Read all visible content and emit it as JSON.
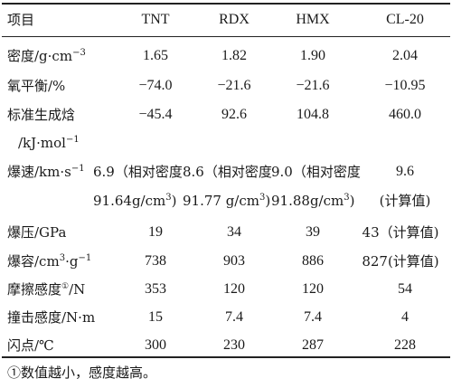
{
  "table": {
    "header": {
      "label": "项目",
      "cols": [
        "TNT",
        "RDX",
        "HMX",
        "CL-20"
      ]
    },
    "rows": {
      "density": {
        "label_pre": "密度/g·cm",
        "label_sup": "−3",
        "values": [
          "1.65",
          "1.82",
          "1.90",
          "2.04"
        ]
      },
      "oxygen_balance": {
        "label": "氧平衡/%",
        "values": [
          "−74.0",
          "−21.6",
          "−21.6",
          "−10.95"
        ]
      },
      "enthalpy": {
        "label_line1": "标准生成焓",
        "label_line2_pre": "/kJ·mol",
        "label_line2_sup": "−1",
        "values": [
          "−45.4",
          "92.6",
          "104.8",
          "460.0"
        ]
      },
      "detonation_velocity": {
        "label_pre": "爆速/km·s",
        "label_sup": "−1",
        "line1": [
          "6.9（相对密度",
          "8.6（相对密度",
          "9.0（相对密度",
          "9.6"
        ],
        "line2_pre": [
          "91.64g/cm",
          "91.77 g/cm",
          "91.88g/cm"
        ],
        "line2_sup": [
          "3",
          "3",
          "3"
        ],
        "line2_post": [
          ")",
          ")",
          ")"
        ],
        "line2_last": "(计算值)"
      },
      "detonation_pressure": {
        "label": "爆压/GPa",
        "values": [
          "19",
          "34",
          "39",
          "43（计算值)"
        ]
      },
      "detonation_volume": {
        "label_pre": "爆容/cm",
        "label_sup1": "3",
        "label_mid": "·g",
        "label_sup2": "−1",
        "values": [
          "738",
          "903",
          "886",
          "827(计算值)"
        ]
      },
      "friction_sensitivity": {
        "label_pre": "摩擦感度",
        "label_mark": "①",
        "label_post": "/N",
        "values": [
          "353",
          "120",
          "120",
          "54"
        ]
      },
      "impact_sensitivity": {
        "label": "撞击感度/N·m",
        "values": [
          "15",
          "7.4",
          "7.4",
          "4"
        ]
      },
      "flash_point": {
        "label": "闪点/℃",
        "values": [
          "300",
          "230",
          "287",
          "228"
        ]
      }
    }
  },
  "footnote": "①数值越小，感度越高。"
}
